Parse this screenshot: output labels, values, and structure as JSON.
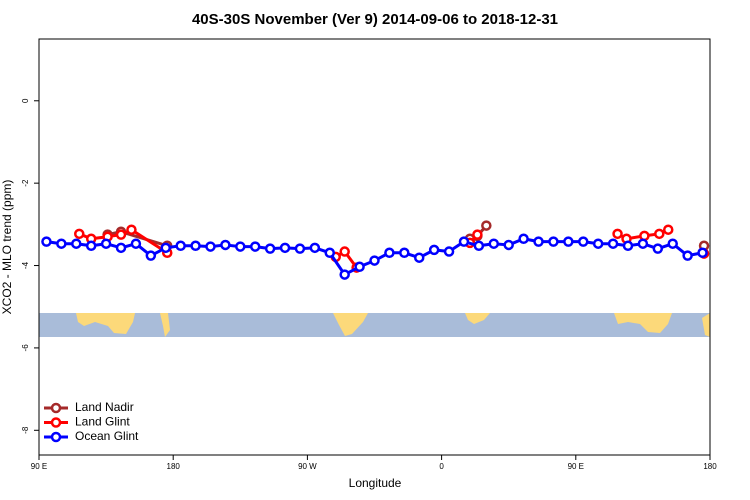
{
  "chart_data": {
    "type": "line",
    "title": "40S-30S November (Ver 9)   2014-09-06 to 2018-12-31",
    "xlabel": "Longitude",
    "ylabel": "XCO2 - MLO trend (ppm)",
    "xlim": [
      90,
      540
    ],
    "ylim": [
      -8.6,
      1.5
    ],
    "xticks": [
      {
        "value": 90,
        "label": "90 E"
      },
      180,
      {
        "value": 270,
        "label": "90 W"
      },
      {
        "value": 360,
        "label": "0"
      },
      {
        "value": 450,
        "label": "90 E"
      },
      {
        "value": 540,
        "label": "180"
      }
    ],
    "yticks": [
      0,
      -2,
      -4,
      -6,
      -8
    ],
    "legend": "bottom-left",
    "series": [
      {
        "name": "Land Nadir",
        "color": "#a52a2a",
        "x": [
          136,
          145,
          176,
          null,
          379,
          384,
          390,
          null,
          536
        ],
        "values": [
          -3.25,
          -3.18,
          -3.52,
          null,
          -3.35,
          -3.28,
          -3.03,
          null,
          -3.52
        ]
      },
      {
        "name": "Land Glint",
        "color": "#ff0000",
        "x": [
          117,
          125,
          136,
          145,
          152,
          176,
          null,
          289,
          295,
          303,
          null,
          379,
          384,
          null,
          478,
          484,
          496,
          506,
          512,
          null,
          536
        ],
        "values": [
          -3.23,
          -3.35,
          -3.3,
          -3.25,
          -3.13,
          -3.69,
          null,
          -3.79,
          -3.66,
          -4.05,
          null,
          -3.45,
          -3.25,
          null,
          -3.23,
          -3.35,
          -3.28,
          -3.23,
          -3.13,
          null,
          -3.71
        ]
      },
      {
        "name": "Ocean Glint",
        "color": "#0000ff",
        "x": [
          95,
          105,
          115,
          125,
          135,
          145,
          155,
          165,
          175,
          185,
          195,
          205,
          215,
          225,
          235,
          245,
          255,
          265,
          275,
          285,
          295,
          305,
          315,
          325,
          335,
          345,
          355,
          365,
          375,
          385,
          395,
          405,
          415,
          425,
          435,
          445,
          455,
          465,
          475,
          485,
          495,
          505,
          515,
          525,
          535
        ],
        "values": [
          -3.42,
          -3.47,
          -3.47,
          -3.52,
          -3.47,
          -3.57,
          -3.47,
          -3.76,
          -3.57,
          -3.52,
          -3.52,
          -3.54,
          -3.5,
          -3.54,
          -3.54,
          -3.59,
          -3.57,
          -3.59,
          -3.57,
          -3.69,
          -4.22,
          -4.03,
          -3.88,
          -3.69,
          -3.69,
          -3.81,
          -3.62,
          -3.66,
          -3.42,
          -3.52,
          -3.47,
          -3.5,
          -3.35,
          -3.42,
          -3.42,
          -3.42,
          -3.42,
          -3.47,
          -3.47,
          -3.52,
          -3.47,
          -3.59,
          -3.47,
          -3.76,
          -3.69
        ]
      }
    ]
  }
}
